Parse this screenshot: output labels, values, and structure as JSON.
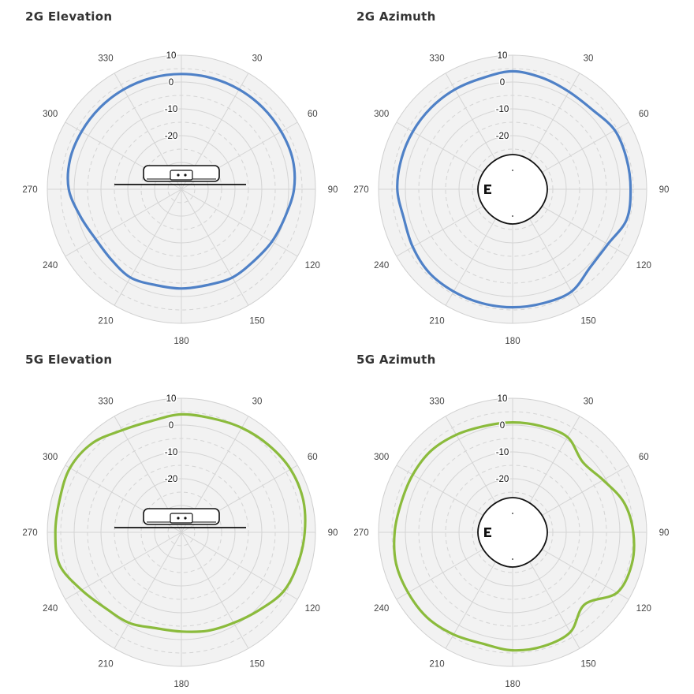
{
  "panels": [
    {
      "title": "2G Elevation"
    },
    {
      "title": "2G Azimuth"
    },
    {
      "title": "5G Elevation"
    },
    {
      "title": "5G Azimuth"
    }
  ],
  "colors": {
    "series_2g": "#4f81c7",
    "series_5g": "#8bbb3c",
    "face": "#f2f2f2",
    "grid": "#d4d4d4"
  },
  "chart_data": [
    {
      "type": "polar-line",
      "title": "2G Elevation",
      "theta_ticks": [
        "30",
        "60",
        "90",
        "120",
        "150",
        "180",
        "210",
        "240",
        "270",
        "300",
        "330"
      ],
      "r_ticks": [
        "10",
        "0",
        "-10",
        "-20"
      ],
      "rlim": [
        -40,
        10
      ],
      "grid": true,
      "inset_icon": "side-view-access-point-icon",
      "series": [
        {
          "color": "#4f81c7",
          "theta": [
            0,
            15,
            30,
            45,
            60,
            75,
            90,
            105,
            120,
            135,
            150,
            165,
            180,
            195,
            210,
            225,
            240,
            255,
            270,
            285,
            300,
            315,
            330,
            345
          ],
          "values": [
            3,
            3,
            3,
            3,
            3,
            3,
            2,
            0,
            -1,
            -2,
            -2,
            -3,
            -3,
            -3,
            -2,
            -3,
            -3,
            -1,
            2,
            3,
            3,
            3,
            3,
            3
          ]
        }
      ]
    },
    {
      "type": "polar-line",
      "title": "2G Azimuth",
      "theta_ticks": [
        "30",
        "60",
        "90",
        "120",
        "150",
        "180",
        "210",
        "240",
        "270",
        "300",
        "330"
      ],
      "r_ticks": [
        "10",
        "0",
        "-10",
        "-20"
      ],
      "rlim": [
        -40,
        10
      ],
      "grid": true,
      "inset_icon": "top-view-access-point-icon",
      "series": [
        {
          "color": "#4f81c7",
          "theta": [
            0,
            15,
            30,
            45,
            60,
            75,
            90,
            105,
            120,
            135,
            150,
            165,
            180,
            195,
            210,
            225,
            240,
            255,
            270,
            285,
            300,
            315,
            330,
            345
          ],
          "values": [
            4,
            3,
            2,
            2,
            4,
            4,
            4,
            4,
            1,
            1,
            4,
            4,
            4,
            4,
            4,
            4,
            3,
            2,
            3,
            3,
            3,
            3,
            3,
            3
          ]
        }
      ]
    },
    {
      "type": "polar-line",
      "title": "5G Elevation",
      "theta_ticks": [
        "30",
        "60",
        "90",
        "120",
        "150",
        "180",
        "210",
        "240",
        "270",
        "300",
        "330"
      ],
      "r_ticks": [
        "10",
        "0",
        "-10",
        "-20"
      ],
      "rlim": [
        -40,
        10
      ],
      "grid": true,
      "inset_icon": "side-view-access-point-icon",
      "series": [
        {
          "color": "#8bbb3c",
          "theta": [
            0,
            15,
            30,
            45,
            60,
            75,
            90,
            105,
            120,
            135,
            150,
            165,
            180,
            195,
            210,
            225,
            240,
            255,
            270,
            285,
            300,
            315,
            330,
            345
          ],
          "values": [
            4,
            4,
            5,
            6,
            7,
            7,
            6,
            5,
            4,
            1,
            -1,
            -2,
            -3,
            -3,
            -1,
            0,
            3,
            7,
            7,
            7,
            8,
            7,
            4,
            3
          ]
        }
      ]
    },
    {
      "type": "polar-line",
      "title": "5G Azimuth",
      "theta_ticks": [
        "30",
        "60",
        "90",
        "120",
        "150",
        "180",
        "210",
        "240",
        "270",
        "300",
        "330"
      ],
      "r_ticks": [
        "10",
        "0",
        "-10",
        "-20"
      ],
      "rlim": [
        -40,
        10
      ],
      "grid": true,
      "inset_icon": "top-view-access-point-icon",
      "series": [
        {
          "color": "#8bbb3c",
          "theta": [
            0,
            15,
            30,
            45,
            60,
            75,
            90,
            105,
            120,
            135,
            150,
            165,
            180,
            195,
            210,
            225,
            240,
            255,
            270,
            285,
            300,
            315,
            330,
            345
          ],
          "values": [
            1,
            1,
            1,
            -3,
            -1,
            3,
            5,
            6,
            5,
            -2,
            3,
            4,
            4,
            3,
            4,
            5,
            5,
            5,
            4,
            3,
            3,
            3,
            2,
            1
          ]
        }
      ]
    }
  ]
}
